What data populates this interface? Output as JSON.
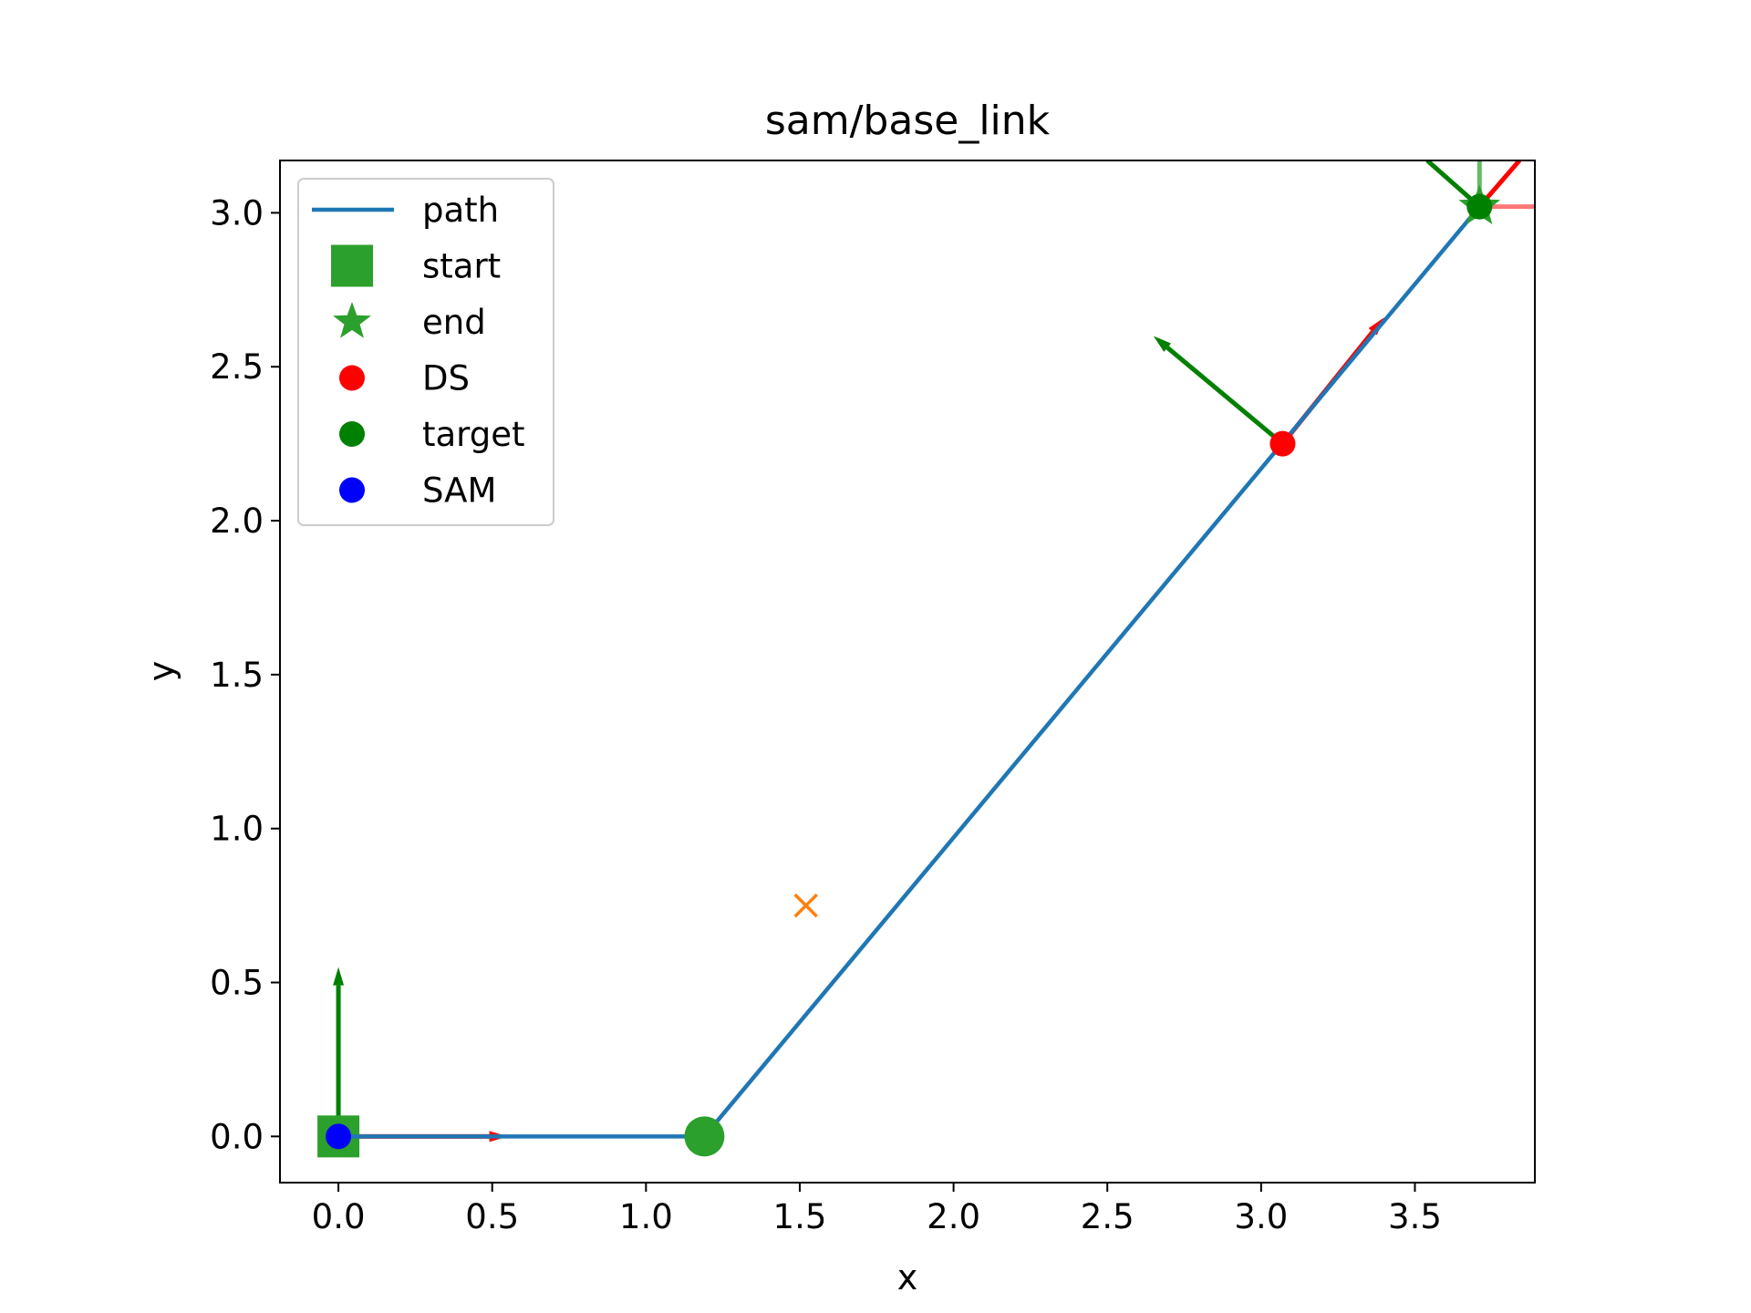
{
  "chart_data": {
    "type": "line",
    "title": "sam/base_link",
    "xlabel": "x",
    "ylabel": "y",
    "xlim": [
      -0.19,
      3.89
    ],
    "ylim": [
      -0.15,
      3.17
    ],
    "xticks": [
      0.0,
      0.5,
      1.0,
      1.5,
      2.0,
      2.5,
      3.0,
      3.5
    ],
    "xtick_labels": [
      "0.0",
      "0.5",
      "1.0",
      "1.5",
      "2.0",
      "2.5",
      "3.0",
      "3.5"
    ],
    "yticks": [
      0.0,
      0.5,
      1.0,
      1.5,
      2.0,
      2.5,
      3.0
    ],
    "ytick_labels": [
      "0.0",
      "0.5",
      "1.0",
      "1.5",
      "2.0",
      "2.5",
      "3.0"
    ],
    "grid": false,
    "legend_position": "upper-left",
    "colors": {
      "path": "#1f77b4",
      "start_end": "#2ca02c",
      "ds": "#ff0000",
      "target": "#008000",
      "sam": "#0000ff",
      "cross": "#ff7f0e",
      "axis_red": "#ff0000",
      "axis_green": "#008000"
    },
    "series": [
      {
        "name": "path",
        "x": [
          0.0,
          1.19,
          3.71
        ],
        "y": [
          0.0,
          0.0,
          3.02
        ]
      }
    ],
    "legend": [
      {
        "label": "path",
        "marker": "line",
        "color": "#1f77b4"
      },
      {
        "label": "start",
        "marker": "square",
        "color": "#2ca02c"
      },
      {
        "label": "end",
        "marker": "star",
        "color": "#2ca02c"
      },
      {
        "label": "DS",
        "marker": "circle",
        "color": "#ff0000"
      },
      {
        "label": "target",
        "marker": "circle",
        "color": "#008000"
      },
      {
        "label": "SAM",
        "marker": "circle",
        "color": "#0000ff"
      }
    ],
    "points": {
      "start": {
        "x": 0.0,
        "y": 0.0
      },
      "end": {
        "x": 3.71,
        "y": 3.02
      },
      "ds": {
        "x": 3.07,
        "y": 2.25
      },
      "target": {
        "x": 3.71,
        "y": 3.02
      },
      "sam": {
        "x": 0.0,
        "y": 0.0
      },
      "waypoint": {
        "x": 1.19,
        "y": 0.0
      },
      "cross": {
        "x": 1.52,
        "y": 0.75
      }
    },
    "frame_arrows": [
      {
        "from": [
          0.0,
          0.0
        ],
        "to": [
          0.55,
          0.0
        ],
        "color": "#ff0000"
      },
      {
        "from": [
          0.0,
          0.0
        ],
        "to": [
          0.0,
          0.55
        ],
        "color": "#008000"
      },
      {
        "from": [
          3.07,
          2.25
        ],
        "to": [
          3.4,
          2.66
        ],
        "color": "#ff0000"
      },
      {
        "from": [
          3.07,
          2.25
        ],
        "to": [
          2.65,
          2.6
        ],
        "color": "#008000"
      }
    ],
    "frame_segments": [
      {
        "from": [
          3.71,
          3.02
        ],
        "to": [
          3.89,
          3.02
        ],
        "color": "#ff7777"
      },
      {
        "from": [
          3.71,
          3.02
        ],
        "to": [
          3.84,
          3.17
        ],
        "color": "#ff0000"
      },
      {
        "from": [
          3.71,
          3.02
        ],
        "to": [
          3.71,
          3.17
        ],
        "color": "#66bb66"
      },
      {
        "from": [
          3.71,
          3.02
        ],
        "to": [
          3.54,
          3.17
        ],
        "color": "#008000"
      }
    ]
  }
}
